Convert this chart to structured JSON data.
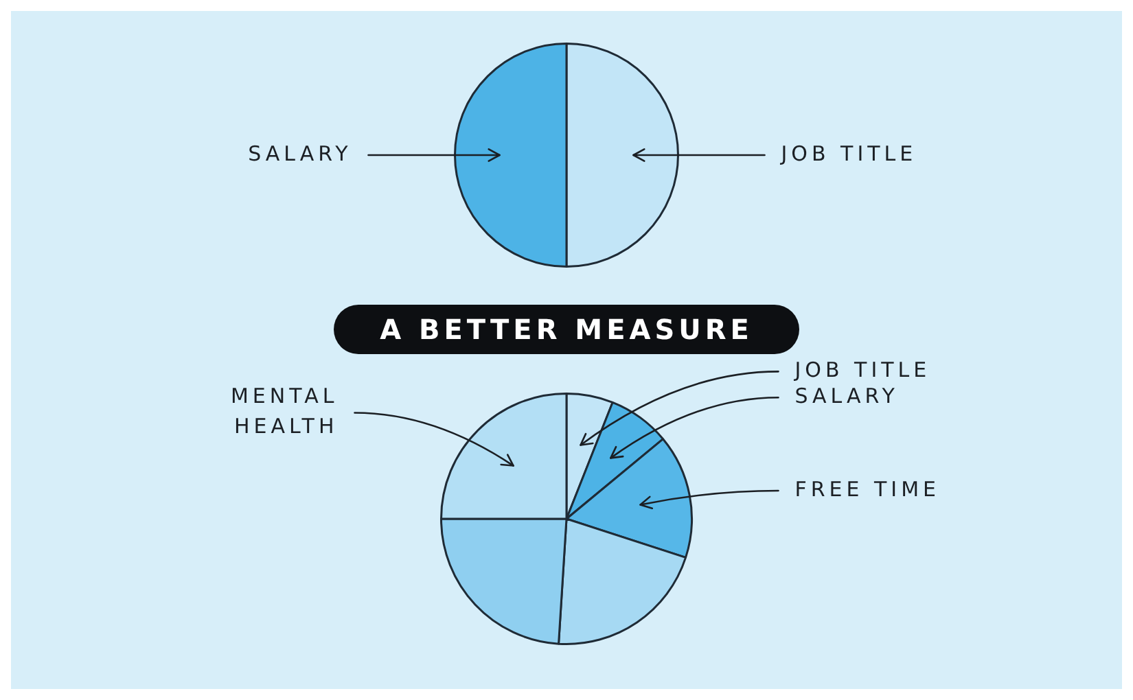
{
  "chart_data": [
    {
      "type": "pie",
      "categories": [
        "JOB TITLE",
        "SALARY"
      ],
      "values": [
        50,
        50
      ],
      "colors": [
        "#c2e5f7",
        "#4db3e6"
      ],
      "legend": false
    },
    {
      "type": "pie",
      "title": "A BETTER MEASURE",
      "categories": [
        "JOB TITLE",
        "SALARY",
        "FREE TIME",
        null,
        null,
        "MENTAL HEALTH"
      ],
      "values": [
        6,
        8,
        16,
        21,
        24,
        25
      ],
      "colors": [
        "#c2e5f7",
        "#4db3e6",
        "#56b7e8",
        "#a6d9f3",
        "#8fcff0",
        "#b3dff5"
      ],
      "legend": false
    }
  ]
}
